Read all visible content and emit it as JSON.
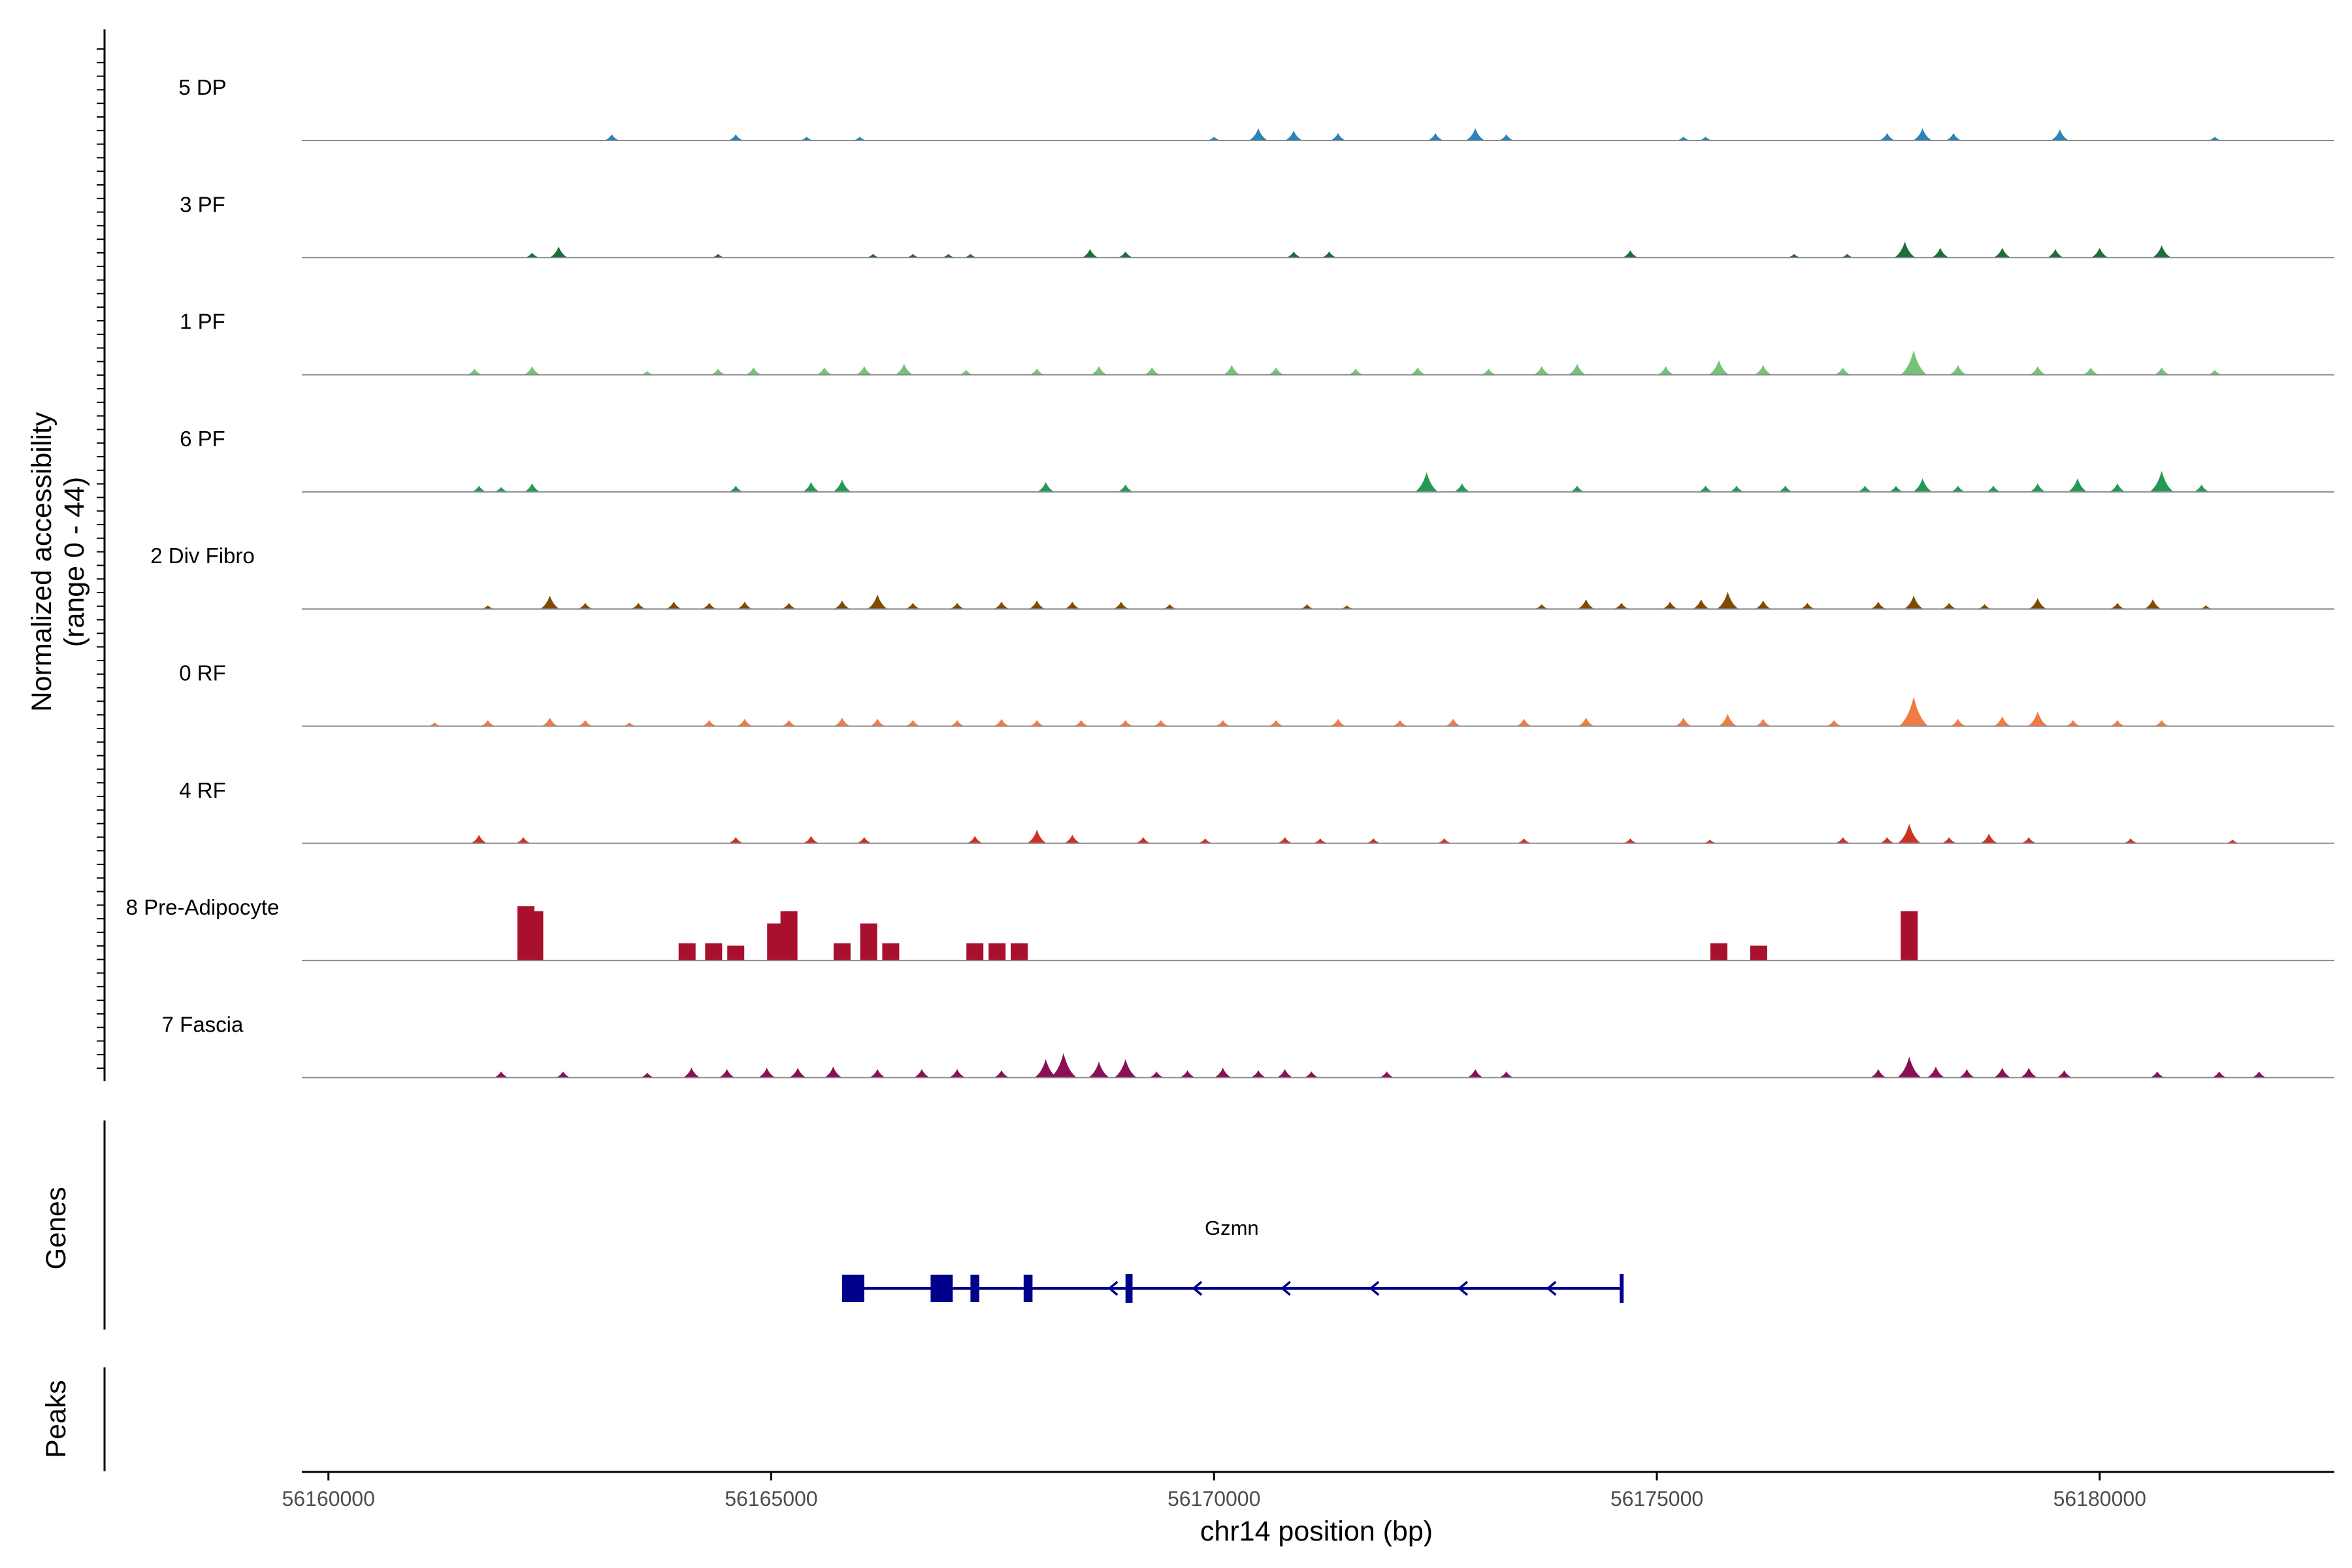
{
  "chart_data": {
    "type": "area",
    "title": "",
    "xlabel": "chr14 position (bp)",
    "ylabel": "Normalized accessibility (range 0 - 44)",
    "ylabel_lines": [
      "Normalized accessibility",
      "(range 0 - 44)"
    ],
    "xlim": [
      56159700,
      56182650
    ],
    "ylim": [
      0,
      44
    ],
    "x_ticks": [
      56160000,
      56165000,
      56170000,
      56175000,
      56180000
    ],
    "x_tick_labels": [
      "56160000",
      "56165000",
      "56170000",
      "56175000",
      "56180000"
    ],
    "panel_labels": {
      "genes": "Genes",
      "peaks": "Peaks"
    },
    "series": [
      {
        "name": "5 DP",
        "color": "#2b83ba",
        "peaks": [
          [
            56163200,
            5
          ],
          [
            56164600,
            5
          ],
          [
            56165400,
            3
          ],
          [
            56166000,
            3
          ],
          [
            56170000,
            3
          ],
          [
            56170500,
            10
          ],
          [
            56170900,
            8
          ],
          [
            56171400,
            6
          ],
          [
            56172500,
            6
          ],
          [
            56172950,
            10
          ],
          [
            56173300,
            5
          ],
          [
            56175300,
            3
          ],
          [
            56175550,
            3
          ],
          [
            56177600,
            6
          ],
          [
            56178000,
            10
          ],
          [
            56178350,
            6
          ],
          [
            56179550,
            9
          ],
          [
            56181300,
            3
          ]
        ]
      },
      {
        "name": "3 PF",
        "color": "#1b6e3a",
        "peaks": [
          [
            56162300,
            4
          ],
          [
            56162600,
            9
          ],
          [
            56164400,
            3
          ],
          [
            56166150,
            3
          ],
          [
            56166600,
            3
          ],
          [
            56167000,
            3
          ],
          [
            56167250,
            3
          ],
          [
            56168600,
            7
          ],
          [
            56169000,
            5
          ],
          [
            56170900,
            5
          ],
          [
            56171300,
            5
          ],
          [
            56174700,
            6
          ],
          [
            56176550,
            3
          ],
          [
            56177150,
            3
          ],
          [
            56177800,
            13
          ],
          [
            56178200,
            8
          ],
          [
            56178900,
            8
          ],
          [
            56179500,
            7
          ],
          [
            56180000,
            8
          ],
          [
            56180700,
            10
          ]
        ]
      },
      {
        "name": "1 PF",
        "color": "#74c476",
        "peaks": [
          [
            56161650,
            5
          ],
          [
            56162300,
            7
          ],
          [
            56163600,
            3
          ],
          [
            56164400,
            5
          ],
          [
            56164800,
            6
          ],
          [
            56165600,
            6
          ],
          [
            56166050,
            7
          ],
          [
            56166500,
            9
          ],
          [
            56167200,
            4
          ],
          [
            56168000,
            5
          ],
          [
            56168700,
            7
          ],
          [
            56169300,
            6
          ],
          [
            56170200,
            8
          ],
          [
            56170700,
            6
          ],
          [
            56171600,
            5
          ],
          [
            56172300,
            6
          ],
          [
            56173100,
            5
          ],
          [
            56173700,
            7
          ],
          [
            56174100,
            9
          ],
          [
            56175100,
            7
          ],
          [
            56175700,
            12
          ],
          [
            56176200,
            8
          ],
          [
            56177100,
            6
          ],
          [
            56177900,
            20
          ],
          [
            56178400,
            8
          ],
          [
            56179300,
            7
          ],
          [
            56179900,
            6
          ],
          [
            56180700,
            6
          ],
          [
            56181300,
            4
          ]
        ]
      },
      {
        "name": "6 PF",
        "color": "#229954",
        "peaks": [
          [
            56161700,
            5
          ],
          [
            56161950,
            4
          ],
          [
            56162300,
            7
          ],
          [
            56164600,
            5
          ],
          [
            56165450,
            8
          ],
          [
            56165800,
            10
          ],
          [
            56168100,
            8
          ],
          [
            56169000,
            6
          ],
          [
            56172400,
            16
          ],
          [
            56172800,
            7
          ],
          [
            56174100,
            5
          ],
          [
            56175550,
            5
          ],
          [
            56175900,
            5
          ],
          [
            56176450,
            5
          ],
          [
            56177350,
            5
          ],
          [
            56177700,
            5
          ],
          [
            56178000,
            11
          ],
          [
            56178400,
            5
          ],
          [
            56178800,
            5
          ],
          [
            56179300,
            7
          ],
          [
            56179750,
            11
          ],
          [
            56180200,
            7
          ],
          [
            56180700,
            17
          ],
          [
            56181150,
            6
          ]
        ]
      },
      {
        "name": "2 Div Fibro",
        "color": "#7f4b00",
        "peaks": [
          [
            56161800,
            3
          ],
          [
            56162500,
            11
          ],
          [
            56162900,
            5
          ],
          [
            56163500,
            5
          ],
          [
            56163900,
            6
          ],
          [
            56164300,
            5
          ],
          [
            56164700,
            6
          ],
          [
            56165200,
            5
          ],
          [
            56165800,
            7
          ],
          [
            56166200,
            12
          ],
          [
            56166600,
            5
          ],
          [
            56167100,
            5
          ],
          [
            56167600,
            6
          ],
          [
            56168000,
            7
          ],
          [
            56168400,
            6
          ],
          [
            56168950,
            6
          ],
          [
            56169500,
            4
          ],
          [
            56171050,
            4
          ],
          [
            56171500,
            3
          ],
          [
            56173700,
            4
          ],
          [
            56174200,
            8
          ],
          [
            56174600,
            5
          ],
          [
            56175150,
            6
          ],
          [
            56175500,
            8
          ],
          [
            56175800,
            14
          ],
          [
            56176200,
            7
          ],
          [
            56176700,
            5
          ],
          [
            56177500,
            6
          ],
          [
            56177900,
            11
          ],
          [
            56178300,
            5
          ],
          [
            56178700,
            4
          ],
          [
            56179300,
            9
          ],
          [
            56180200,
            5
          ],
          [
            56180600,
            8
          ],
          [
            56181200,
            3
          ]
        ]
      },
      {
        "name": "0 RF",
        "color": "#f07b45",
        "peaks": [
          [
            56161200,
            3
          ],
          [
            56161800,
            5
          ],
          [
            56162500,
            7
          ],
          [
            56162900,
            5
          ],
          [
            56163400,
            3
          ],
          [
            56164300,
            5
          ],
          [
            56164700,
            6
          ],
          [
            56165200,
            5
          ],
          [
            56165800,
            7
          ],
          [
            56166200,
            6
          ],
          [
            56166600,
            5
          ],
          [
            56167100,
            5
          ],
          [
            56167600,
            6
          ],
          [
            56168000,
            5
          ],
          [
            56168500,
            5
          ],
          [
            56169000,
            5
          ],
          [
            56169400,
            5
          ],
          [
            56170100,
            5
          ],
          [
            56170700,
            5
          ],
          [
            56171400,
            6
          ],
          [
            56172100,
            5
          ],
          [
            56172700,
            6
          ],
          [
            56173500,
            6
          ],
          [
            56174200,
            7
          ],
          [
            56175300,
            7
          ],
          [
            56175800,
            10
          ],
          [
            56176200,
            6
          ],
          [
            56177000,
            5
          ],
          [
            56177900,
            24
          ],
          [
            56178400,
            6
          ],
          [
            56178900,
            8
          ],
          [
            56179300,
            12
          ],
          [
            56179700,
            5
          ],
          [
            56180200,
            5
          ],
          [
            56180700,
            5
          ]
        ]
      },
      {
        "name": "4 RF",
        "color": "#cc3325",
        "peaks": [
          [
            56161700,
            7
          ],
          [
            56162200,
            5
          ],
          [
            56164600,
            5
          ],
          [
            56165450,
            6
          ],
          [
            56166050,
            5
          ],
          [
            56167300,
            6
          ],
          [
            56168000,
            11
          ],
          [
            56168400,
            7
          ],
          [
            56169200,
            5
          ],
          [
            56169900,
            4
          ],
          [
            56170800,
            5
          ],
          [
            56171200,
            4
          ],
          [
            56171800,
            4
          ],
          [
            56172600,
            4
          ],
          [
            56173500,
            4
          ],
          [
            56174700,
            4
          ],
          [
            56175600,
            3
          ],
          [
            56177100,
            5
          ],
          [
            56177600,
            5
          ],
          [
            56177850,
            16
          ],
          [
            56178300,
            5
          ],
          [
            56178750,
            8
          ],
          [
            56179200,
            5
          ],
          [
            56180350,
            4
          ],
          [
            56181500,
            3
          ]
        ]
      },
      {
        "name": "8 Pre-Adipocyte",
        "color": "#a8102e",
        "peaks": [
          [
            56162230,
            44
          ],
          [
            56162330,
            40
          ],
          [
            56164050,
            14
          ],
          [
            56164350,
            14
          ],
          [
            56164600,
            12
          ],
          [
            56165050,
            30
          ],
          [
            56165200,
            40
          ],
          [
            56165800,
            14
          ],
          [
            56166100,
            30
          ],
          [
            56166350,
            14
          ],
          [
            56167300,
            14
          ],
          [
            56167550,
            14
          ],
          [
            56167800,
            14
          ],
          [
            56175700,
            14
          ],
          [
            56176150,
            12
          ],
          [
            56177850,
            40
          ]
        ]
      },
      {
        "name": "7 Fascia",
        "color": "#8a0f56",
        "peaks": [
          [
            56161950,
            5
          ],
          [
            56162650,
            5
          ],
          [
            56163600,
            4
          ],
          [
            56164100,
            8
          ],
          [
            56164500,
            7
          ],
          [
            56164950,
            8
          ],
          [
            56165300,
            8
          ],
          [
            56165700,
            9
          ],
          [
            56166200,
            7
          ],
          [
            56166700,
            7
          ],
          [
            56167100,
            7
          ],
          [
            56167600,
            6
          ],
          [
            56168100,
            15
          ],
          [
            56168300,
            20
          ],
          [
            56168700,
            13
          ],
          [
            56169000,
            15
          ],
          [
            56169350,
            5
          ],
          [
            56169700,
            6
          ],
          [
            56170100,
            8
          ],
          [
            56170500,
            6
          ],
          [
            56170800,
            7
          ],
          [
            56171100,
            5
          ],
          [
            56171950,
            5
          ],
          [
            56172950,
            7
          ],
          [
            56173300,
            5
          ],
          [
            56177500,
            7
          ],
          [
            56177850,
            17
          ],
          [
            56178150,
            9
          ],
          [
            56178500,
            7
          ],
          [
            56178900,
            8
          ],
          [
            56179200,
            8
          ],
          [
            56179600,
            6
          ],
          [
            56180650,
            5
          ],
          [
            56181350,
            5
          ],
          [
            56181800,
            5
          ]
        ]
      }
    ],
    "genes": [
      {
        "name": "Gzmn",
        "start": 56165800,
        "end": 56174600,
        "strand": "-",
        "exons": [
          [
            56165800,
            56166050
          ],
          [
            56166800,
            56167050
          ],
          [
            56167250,
            56167350
          ],
          [
            56167850,
            56167950
          ],
          [
            56169000,
            56169080
          ],
          [
            56174580,
            56174620
          ]
        ],
        "arrows": [
          56168850,
          56169800,
          56170800,
          56171800,
          56172800,
          56173800
        ]
      }
    ],
    "peaks": []
  }
}
